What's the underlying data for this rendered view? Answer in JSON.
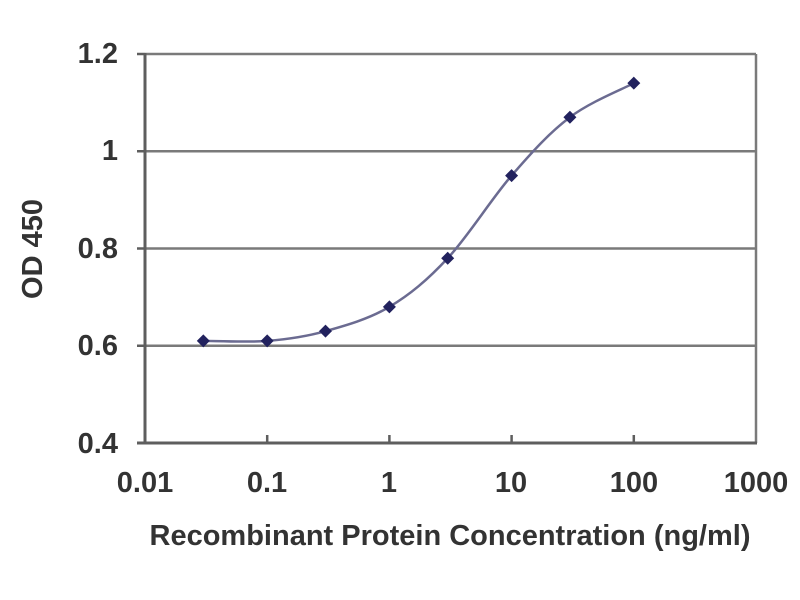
{
  "chart_data": {
    "type": "line",
    "subtype": "smoothed-line-with-markers",
    "title": "",
    "xlabel": "Recombinant Protein Concentration (ng/ml)",
    "ylabel": "OD 450",
    "x_scale": "log",
    "y_scale": "linear",
    "xlim": [
      0.01,
      1000
    ],
    "ylim": [
      0.4,
      1.2
    ],
    "x": [
      0.03,
      0.1,
      0.3,
      1,
      3,
      10,
      30,
      100
    ],
    "series": [
      {
        "name": "OD 450",
        "values": [
          0.61,
          0.61,
          0.63,
          0.68,
          0.78,
          0.95,
          1.07,
          1.14
        ]
      }
    ],
    "x_tick_values": [
      0.01,
      0.1,
      1,
      10,
      100,
      1000
    ],
    "x_tick_labels": [
      "0.01",
      "0.1",
      "1",
      "10",
      "100",
      "1000"
    ],
    "y_tick_values": [
      0.4,
      0.6,
      0.8,
      1,
      1.2
    ],
    "y_tick_labels": [
      "0.4",
      "0.6",
      "0.8",
      "1",
      "1.2"
    ],
    "grid": "horizontal",
    "legend": "none",
    "marker_shape": "diamond",
    "colors": {
      "line": "#6b6b91",
      "marker": "#22225e",
      "grid": "#7a7a7a",
      "axis": "#5e5e5e",
      "text": "#333333",
      "background": "#ffffff"
    }
  }
}
